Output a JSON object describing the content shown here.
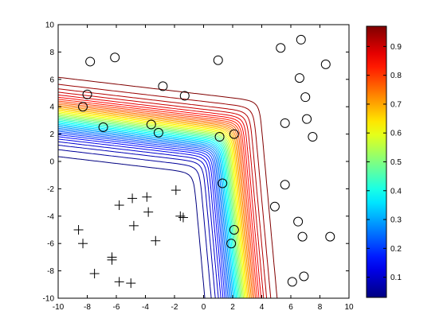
{
  "chart_data": {
    "type": "contour",
    "x_axis": {
      "lim": [
        -10,
        10
      ],
      "ticks": [
        -10,
        -8,
        -6,
        -4,
        -2,
        0,
        2,
        4,
        6,
        8,
        10
      ],
      "tick_labels": [
        "-10",
        "-8",
        "-6",
        "-4",
        "-2",
        "0",
        "2",
        "4",
        "6",
        "8",
        "10"
      ]
    },
    "y_axis": {
      "lim": [
        -10,
        10
      ],
      "ticks": [
        -10,
        -8,
        -6,
        -4,
        -2,
        0,
        2,
        4,
        6,
        8,
        10
      ],
      "tick_labels": [
        "-10",
        "-8",
        "-6",
        "-4",
        "-2",
        "0",
        "2",
        "4",
        "6",
        "8",
        "10"
      ]
    },
    "colorbar": {
      "colormap": "jet",
      "range": [
        0.03,
        0.97
      ],
      "ticks": [
        0.1,
        0.2,
        0.3,
        0.4,
        0.5,
        0.6,
        0.7,
        0.8,
        0.9
      ],
      "tick_labels": [
        "0.1",
        "0.2",
        "0.3",
        "0.4",
        "0.5",
        "0.6",
        "0.7",
        "0.8",
        "0.9"
      ]
    },
    "contour_model": {
      "description_of_surface": "sigmoid of a softened-max of two linear functions",
      "a": {
        "wx": 0.15,
        "wy": 1.2,
        "b": -2.4
      },
      "c": {
        "wx": 1.4,
        "wy": 0.12,
        "b": -2.4
      },
      "levels_min": 0.03,
      "levels_max": 0.97,
      "levels_count": 40
    },
    "series": [
      {
        "marker": "circle",
        "points": [
          [
            -8.3,
            4.0
          ],
          [
            -8.0,
            4.9
          ],
          [
            -7.8,
            7.3
          ],
          [
            -6.1,
            7.6
          ],
          [
            -6.9,
            2.5
          ],
          [
            -3.6,
            2.7
          ],
          [
            -3.1,
            2.1
          ],
          [
            -2.8,
            5.5
          ],
          [
            -1.3,
            4.8
          ],
          [
            1.0,
            7.4
          ],
          [
            1.1,
            1.8
          ],
          [
            2.1,
            2.0
          ],
          [
            5.3,
            8.3
          ],
          [
            6.7,
            8.9
          ],
          [
            8.4,
            7.1
          ],
          [
            6.6,
            6.1
          ],
          [
            7.0,
            4.7
          ],
          [
            5.6,
            2.8
          ],
          [
            7.1,
            3.1
          ],
          [
            7.5,
            1.8
          ],
          [
            1.3,
            -1.6
          ],
          [
            5.6,
            -1.7
          ],
          [
            4.9,
            -3.3
          ],
          [
            2.1,
            -5.0
          ],
          [
            1.9,
            -6.0
          ],
          [
            6.5,
            -4.4
          ],
          [
            6.8,
            -5.5
          ],
          [
            8.7,
            -5.5
          ],
          [
            6.1,
            -8.8
          ],
          [
            6.9,
            -8.4
          ]
        ]
      },
      {
        "marker": "plus",
        "points": [
          [
            -1.9,
            -2.1
          ],
          [
            -3.9,
            -2.6
          ],
          [
            -4.9,
            -2.7
          ],
          [
            -5.8,
            -3.2
          ],
          [
            -3.8,
            -3.7
          ],
          [
            -1.6,
            -4.0
          ],
          [
            -1.4,
            -4.1
          ],
          [
            -4.8,
            -4.7
          ],
          [
            -8.6,
            -5.0
          ],
          [
            -8.3,
            -6.0
          ],
          [
            -3.3,
            -5.8
          ],
          [
            -6.3,
            -7.0
          ],
          [
            -6.3,
            -7.2
          ],
          [
            -7.5,
            -8.2
          ],
          [
            -5.8,
            -8.8
          ],
          [
            -5.0,
            -8.9
          ]
        ]
      }
    ]
  }
}
